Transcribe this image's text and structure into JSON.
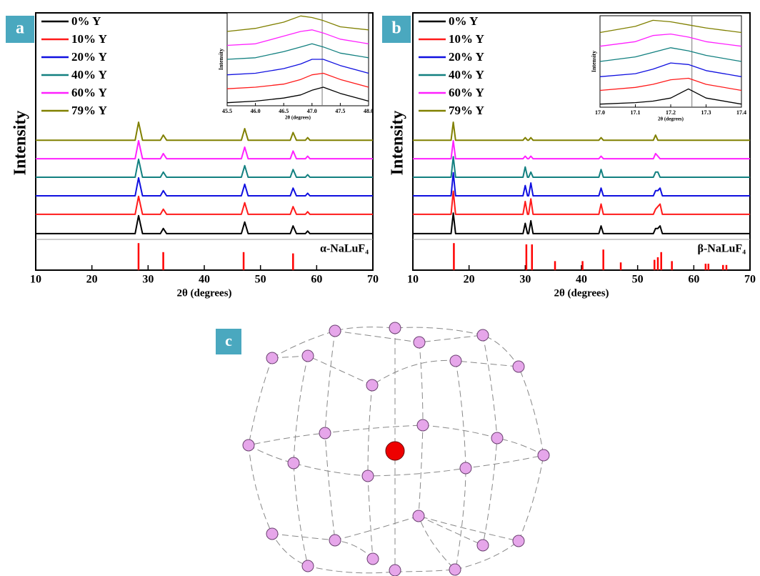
{
  "chart_data": [
    {
      "type": "line",
      "panel_label": "a",
      "xlabel": "2θ (degrees)",
      "ylabel": "Intensity",
      "xlim": [
        10,
        70
      ],
      "xticks": [
        10,
        20,
        30,
        40,
        50,
        60,
        70
      ],
      "ylim": [
        0,
        100
      ],
      "legend": "upper left",
      "grid": false,
      "x": [
        10,
        27.7,
        28.3,
        29.0,
        32.2,
        32.7,
        33.3,
        46.6,
        47.2,
        47.8,
        55.3,
        55.8,
        56.4,
        58.0,
        58.4,
        58.8,
        70
      ],
      "series": [
        {
          "name": "0% Y",
          "color": "#000000",
          "values": [
            14.2,
            14.2,
            21.2,
            14.2,
            14.2,
            16.2,
            14.2,
            14.2,
            18.7,
            14.2,
            14.2,
            17.2,
            14.2,
            14.2,
            15.2,
            14.2,
            14.2
          ]
        },
        {
          "name": "10% Y",
          "color": "#ff1a1a",
          "values": [
            21.7,
            21.7,
            28.7,
            21.7,
            21.7,
            23.7,
            21.7,
            21.7,
            26.2,
            21.7,
            21.7,
            24.7,
            21.7,
            21.7,
            22.7,
            21.7,
            21.7
          ]
        },
        {
          "name": "20% Y",
          "color": "#1010e0",
          "values": [
            28.9,
            28.9,
            35.9,
            28.9,
            28.9,
            30.9,
            28.9,
            28.9,
            33.4,
            28.9,
            28.9,
            31.9,
            28.9,
            28.9,
            29.9,
            28.9,
            28.9
          ]
        },
        {
          "name": "40% Y",
          "color": "#128080",
          "values": [
            36.1,
            36.1,
            43.1,
            36.1,
            36.1,
            38.1,
            36.1,
            36.1,
            40.6,
            36.1,
            36.1,
            39.1,
            36.1,
            36.1,
            37.1,
            36.1,
            36.1
          ]
        },
        {
          "name": "60% Y",
          "color": "#ff20ff",
          "values": [
            43.3,
            43.3,
            50.3,
            43.3,
            43.3,
            45.3,
            43.3,
            43.3,
            47.8,
            43.3,
            43.3,
            46.3,
            43.3,
            43.3,
            44.3,
            43.3,
            43.3
          ]
        },
        {
          "name": "79% Y",
          "color": "#808000",
          "values": [
            50.5,
            50.5,
            57.5,
            50.5,
            50.5,
            52.5,
            50.5,
            50.5,
            55.0,
            50.5,
            50.5,
            53.5,
            50.5,
            50.5,
            51.5,
            50.5,
            50.5
          ]
        }
      ],
      "reference": {
        "label": "α-NaLuF₄",
        "color": "#ff0000",
        "x": [
          28.3,
          32.7,
          47.0,
          55.8
        ],
        "values": [
          10.5,
          7,
          7,
          6.5
        ]
      }
    },
    {
      "type": "line",
      "xlabel": "2θ (degrees)",
      "ylabel": "Intensity",
      "xlim": [
        45.5,
        48.0
      ],
      "xticks": [
        45.5,
        {
          "value": 46,
          "label": "46.0"
        },
        46.5,
        {
          "value": 47,
          "label": "47.0"
        },
        47.5,
        {
          "value": 48,
          "label": "48.0"
        }
      ],
      "ylim": [
        0,
        60
      ],
      "vline": 47.18,
      "x": [
        45.5,
        46.0,
        46.5,
        46.8,
        47.0,
        47.2,
        47.5,
        48.0
      ],
      "series": [
        {
          "color": "#000000",
          "values": [
            2,
            3,
            5,
            7,
            10,
            12,
            8,
            3
          ]
        },
        {
          "color": "#ff1a1a",
          "values": [
            11,
            12,
            14,
            17,
            20,
            21,
            17,
            12
          ]
        },
        {
          "color": "#1010e0",
          "values": [
            20,
            21,
            24,
            27,
            30,
            30,
            26,
            21
          ]
        },
        {
          "color": "#128080",
          "values": [
            30,
            31,
            35,
            38,
            40,
            38,
            34,
            31
          ]
        },
        {
          "color": "#ff20ff",
          "values": [
            39,
            40,
            45,
            48,
            49,
            47,
            43,
            40
          ]
        },
        {
          "color": "#808000",
          "values": [
            48,
            50,
            54,
            58,
            57,
            55,
            51,
            49
          ]
        }
      ]
    },
    {
      "type": "line",
      "panel_label": "b",
      "xlabel": "2θ (degrees)",
      "ylabel": "Intensity",
      "xlim": [
        10,
        70
      ],
      "xticks": [
        10,
        20,
        30,
        40,
        50,
        60,
        70
      ],
      "ylim": [
        0,
        100
      ],
      "legend": "upper left",
      "grid": false,
      "x": [
        10,
        16.8,
        17.2,
        17.6,
        29.6,
        30.0,
        30.4,
        30.6,
        31.0,
        31.4,
        43.1,
        43.5,
        43.9,
        52.8,
        53.2,
        53.6,
        54.0,
        54.4,
        70
      ],
      "series": [
        {
          "name": "0% Y",
          "color": "#000000",
          "values": [
            14.2,
            14.2,
            22.2,
            14.2,
            14.2,
            18.2,
            14.2,
            14.2,
            19.2,
            14.2,
            14.2,
            17.2,
            14.2,
            14.2,
            16.2,
            16.2,
            17.2,
            14.2,
            14.2
          ]
        },
        {
          "name": "10% Y",
          "color": "#ff1a1a",
          "values": [
            21.7,
            21.7,
            30.7,
            21.7,
            21.7,
            26.7,
            21.7,
            21.7,
            27.7,
            21.7,
            21.7,
            25.7,
            21.7,
            21.7,
            23.7,
            24.7,
            25.7,
            21.7,
            21.7
          ]
        },
        {
          "name": "20% Y",
          "color": "#1010e0",
          "values": [
            28.9,
            28.9,
            37.9,
            28.9,
            28.9,
            32.9,
            28.9,
            28.9,
            33.9,
            28.9,
            28.9,
            31.9,
            28.9,
            28.9,
            30.9,
            30.9,
            31.9,
            28.9,
            28.9
          ]
        },
        {
          "name": "40% Y",
          "color": "#128080",
          "values": [
            36.1,
            36.1,
            44.1,
            36.1,
            36.1,
            40.1,
            36.1,
            36.1,
            38.1,
            36.1,
            36.1,
            39.1,
            36.1,
            36.1,
            38.1,
            38.1,
            36.1,
            36.1,
            36.1
          ]
        },
        {
          "name": "60% Y",
          "color": "#ff20ff",
          "values": [
            43.3,
            43.3,
            50.3,
            43.3,
            43.3,
            44.3,
            43.3,
            43.3,
            44.3,
            43.3,
            43.3,
            44.3,
            43.3,
            43.3,
            45.3,
            44.3,
            43.3,
            43.3,
            43.3
          ]
        },
        {
          "name": "79% Y",
          "color": "#808000",
          "values": [
            50.5,
            50.5,
            57.5,
            50.5,
            50.5,
            51.5,
            50.5,
            50.5,
            51.5,
            50.5,
            50.5,
            51.5,
            50.5,
            50.5,
            52.5,
            50.5,
            50.5,
            50.5,
            50.5
          ]
        }
      ],
      "reference": {
        "label": "β-NaLuF₄",
        "color": "#ff0000",
        "x": [
          17.3,
          30.2,
          31.2,
          35.3,
          40.2,
          43.9,
          47.0,
          53.0,
          53.6,
          54.2,
          56.1,
          62.1,
          62.6,
          65.2,
          65.8
        ],
        "values": [
          10.5,
          10,
          10,
          3.5,
          3.5,
          8,
          3,
          4,
          5,
          7,
          3.5,
          2.5,
          2.5,
          2,
          2
        ]
      }
    },
    {
      "type": "line",
      "xlabel": "2θ (degrees)",
      "ylabel": "Intensity",
      "xlim": [
        17.0,
        17.4
      ],
      "xticks": [
        {
          "value": 17,
          "label": "17.0"
        },
        17.1,
        17.2,
        17.3,
        17.4
      ],
      "ylim": [
        0,
        60
      ],
      "vline": 17.26,
      "x": [
        17.0,
        17.1,
        17.15,
        17.2,
        17.25,
        17.3,
        17.4
      ],
      "series": [
        {
          "color": "#000000",
          "values": [
            2,
            3,
            4,
            6,
            12,
            6,
            2
          ]
        },
        {
          "color": "#ff1a1a",
          "values": [
            11,
            13,
            15,
            18,
            19,
            15,
            11
          ]
        },
        {
          "color": "#1010e0",
          "values": [
            20,
            22,
            25,
            29,
            28,
            24,
            20
          ]
        },
        {
          "color": "#128080",
          "values": [
            30,
            33,
            36,
            39,
            37,
            34,
            30
          ]
        },
        {
          "color": "#ff20ff",
          "values": [
            40,
            43,
            47,
            48,
            46,
            43,
            40
          ]
        },
        {
          "color": "#808000",
          "values": [
            49,
            53,
            57,
            56,
            54,
            52,
            49
          ]
        }
      ]
    }
  ],
  "diagram": {
    "panel_label": "c"
  }
}
